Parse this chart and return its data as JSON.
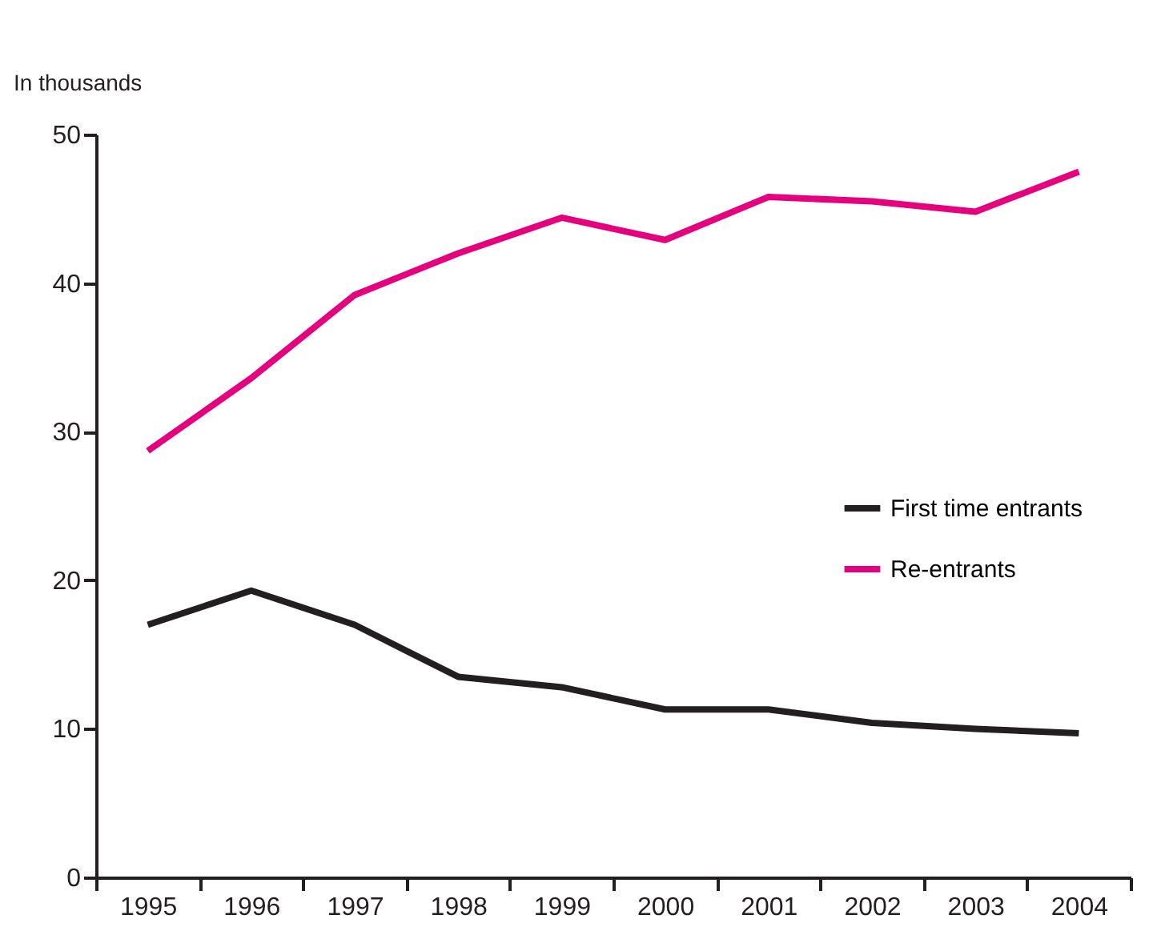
{
  "chart_data": {
    "type": "line",
    "ylabel": "In thousands",
    "categories": [
      "1995",
      "1996",
      "1997",
      "1998",
      "1999",
      "2000",
      "2001",
      "2002",
      "2003",
      "2004"
    ],
    "series": [
      {
        "name": "First time entrants",
        "color": "#231f20",
        "values": [
          17.0,
          19.3,
          17.0,
          13.5,
          12.8,
          11.3,
          11.3,
          10.4,
          10.0,
          9.7
        ]
      },
      {
        "name": "Re-entrants",
        "color": "#e5007d",
        "values": [
          28.7,
          33.6,
          39.2,
          42.0,
          44.4,
          42.9,
          45.8,
          45.5,
          44.8,
          47.5
        ]
      }
    ],
    "ylim": [
      0,
      50
    ],
    "yticks": [
      0,
      10,
      20,
      30,
      40,
      50
    ],
    "grid": false,
    "legend": "right",
    "marker": "none",
    "line_style": "solid"
  }
}
